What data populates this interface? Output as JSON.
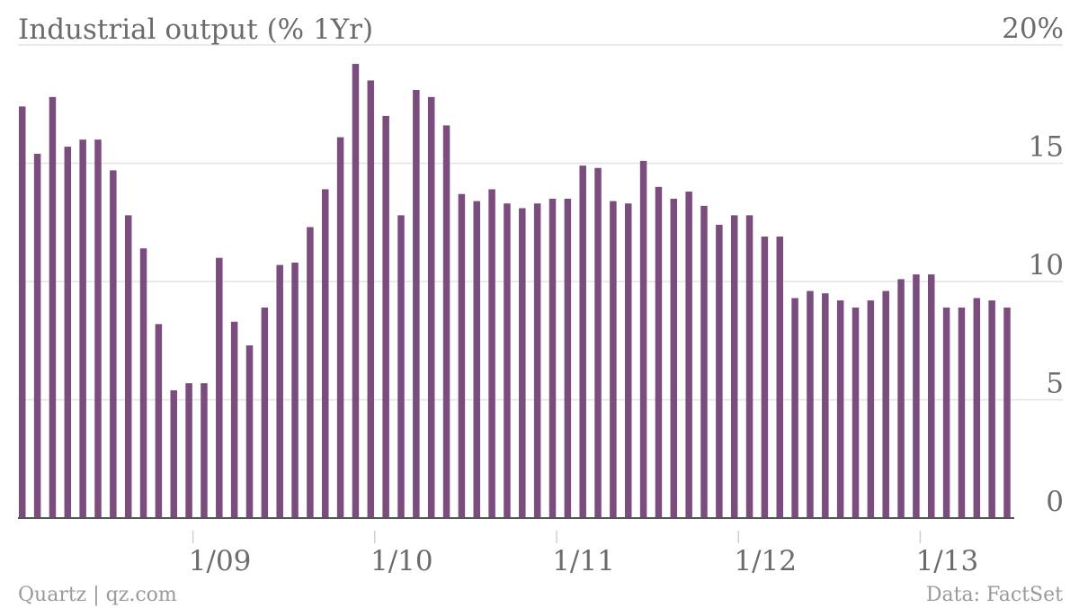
{
  "chart_data": {
    "type": "bar",
    "title": "Industrial output (% 1Yr)",
    "ylim": [
      0,
      20
    ],
    "y_ticks": [
      {
        "value": 0,
        "label": "0"
      },
      {
        "value": 5,
        "label": "5"
      },
      {
        "value": 10,
        "label": "10"
      },
      {
        "value": 15,
        "label": "15"
      },
      {
        "value": 20,
        "label": "20%"
      }
    ],
    "x_ticks": [
      {
        "index": 11,
        "label": "1/09"
      },
      {
        "index": 23,
        "label": "1/10"
      },
      {
        "index": 35,
        "label": "1/11"
      },
      {
        "index": 47,
        "label": "1/12"
      },
      {
        "index": 59,
        "label": "1/13"
      }
    ],
    "values": [
      17.4,
      15.4,
      17.8,
      15.7,
      16.0,
      16.0,
      14.7,
      12.8,
      11.4,
      8.2,
      5.4,
      5.7,
      5.7,
      11.0,
      8.3,
      7.3,
      8.9,
      10.7,
      10.8,
      12.3,
      13.9,
      16.1,
      19.2,
      18.5,
      17.0,
      12.8,
      18.1,
      17.8,
      16.6,
      13.7,
      13.4,
      13.9,
      13.3,
      13.1,
      13.3,
      13.5,
      13.5,
      14.9,
      14.8,
      13.4,
      13.3,
      15.1,
      14.0,
      13.5,
      13.8,
      13.2,
      12.4,
      12.8,
      12.8,
      11.9,
      11.9,
      9.3,
      9.6,
      9.5,
      9.2,
      8.9,
      9.2,
      9.6,
      10.1,
      10.3,
      10.3,
      8.9,
      8.9,
      9.3,
      9.2,
      8.9
    ],
    "bar_color": "#7b4c7e",
    "grid": true
  },
  "footer": {
    "source_left": "Quartz | qz.com",
    "source_right": "Data: FactSet"
  }
}
